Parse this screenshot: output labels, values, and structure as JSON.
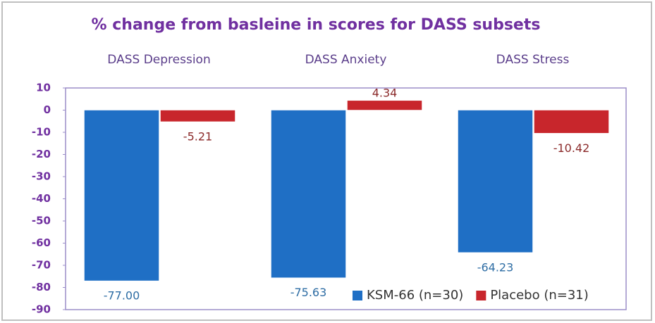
{
  "chart_data": {
    "type": "bar",
    "title": "% change from basleine in scores for DASS subsets",
    "categories": [
      "DASS Depression",
      "DASS Anxiety",
      "DASS Stress"
    ],
    "series": [
      {
        "name": "KSM-66 (n=30)",
        "color": "#1f6fc5",
        "label_color": "#2e6da4",
        "values": [
          -77.0,
          -75.63,
          -64.23
        ],
        "value_labels": [
          "-77.00",
          "-75.63",
          "-64.23"
        ]
      },
      {
        "name": "Placebo (n=31)",
        "color": "#c8262c",
        "label_color": "#8b2a2a",
        "values": [
          -5.21,
          4.34,
          -10.42
        ],
        "value_labels": [
          "-5.21",
          "4.34",
          "-10.42"
        ]
      }
    ],
    "ylim": [
      -90,
      10
    ],
    "yticks": [
      10,
      0,
      -10,
      -20,
      -30,
      -40,
      -50,
      -60,
      -70,
      -80,
      -90
    ],
    "grid": false,
    "legend": "lower right"
  }
}
